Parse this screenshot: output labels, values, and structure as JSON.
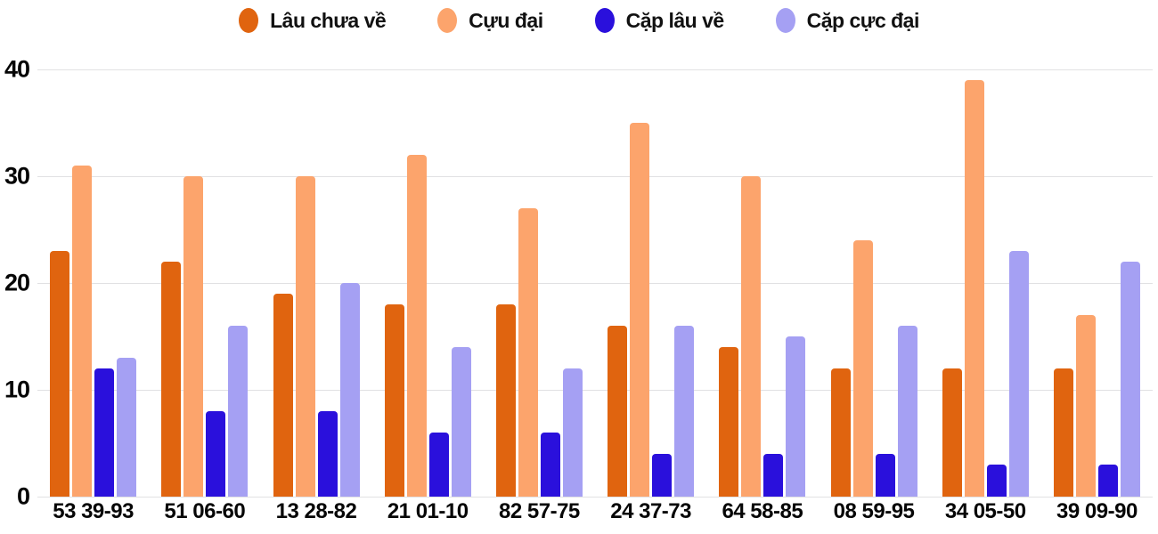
{
  "chart_data": {
    "type": "bar",
    "title": "",
    "xlabel": "",
    "ylabel": "",
    "categories": [
      "53 39-93",
      "51 06-60",
      "13 28-82",
      "21 01-10",
      "82 57-75",
      "24 37-73",
      "64 58-85",
      "08 59-95",
      "34 05-50",
      "39 09-90"
    ],
    "series": [
      {
        "name": "Lâu chưa về",
        "color": "#E0640F",
        "values": [
          23,
          22,
          19,
          18,
          18,
          16,
          14,
          12,
          12,
          12
        ]
      },
      {
        "name": "Cựu đại",
        "color": "#FCA46C",
        "values": [
          31,
          30,
          30,
          32,
          27,
          35,
          30,
          24,
          39,
          17
        ]
      },
      {
        "name": "Cặp lâu về",
        "color": "#2A10DC",
        "values": [
          12,
          8,
          8,
          6,
          6,
          4,
          4,
          4,
          3,
          3
        ]
      },
      {
        "name": "Cặp cực đại",
        "color": "#A5A0F3",
        "values": [
          13,
          16,
          20,
          14,
          12,
          16,
          15,
          16,
          23,
          22
        ]
      }
    ],
    "ylim": [
      0,
      40
    ],
    "yticks": [
      0,
      10,
      20,
      30,
      40
    ],
    "grid": "horizontal",
    "gridline_color": "#e1e1e3",
    "legend_position": "top-center",
    "background": "#ffffff"
  }
}
